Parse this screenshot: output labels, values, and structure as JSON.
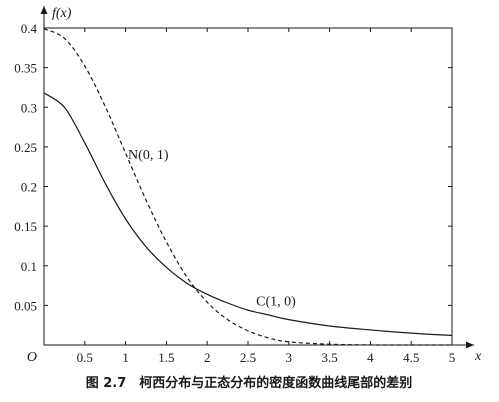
{
  "chart_data": {
    "type": "line",
    "title": "",
    "caption": "图 2.7　柯西分布与正态分布的密度函数曲线尾部的差别",
    "xlabel": "x",
    "ylabel": "f(x)",
    "origin_label": "O",
    "xlim": [
      0,
      5
    ],
    "ylim": [
      0,
      0.4
    ],
    "xticks": [
      0.5,
      1,
      1.5,
      2,
      2.5,
      3,
      3.5,
      4,
      4.5,
      5
    ],
    "xtick_labels": [
      "0.5",
      "1",
      "1.5",
      "2",
      "2.5",
      "3",
      "3.5",
      "4",
      "4.5",
      "5"
    ],
    "yticks": [
      0.05,
      0.1,
      0.15,
      0.2,
      0.25,
      0.3,
      0.35,
      0.4
    ],
    "ytick_labels": [
      "0.05",
      "0.1",
      "0.15",
      "0.2",
      "0.25",
      "0.3",
      "0.35",
      "0.4"
    ],
    "grid": false,
    "series": [
      {
        "name": "N(0, 1)",
        "style": "dashed",
        "color": "#1a1a1a",
        "x": [
          0,
          0.25,
          0.5,
          0.75,
          1,
          1.25,
          1.5,
          1.75,
          2,
          2.25,
          2.5,
          2.75,
          3,
          3.5,
          4,
          4.5,
          5
        ],
        "y": [
          0.399,
          0.387,
          0.352,
          0.301,
          0.242,
          0.183,
          0.13,
          0.086,
          0.054,
          0.032,
          0.018,
          0.009,
          0.004,
          0.001,
          0.0001,
          0.0,
          0.0
        ]
      },
      {
        "name": "C(1, 0)",
        "style": "solid",
        "color": "#1a1a1a",
        "x": [
          0,
          0.25,
          0.5,
          0.75,
          1,
          1.25,
          1.5,
          1.75,
          2,
          2.25,
          2.5,
          2.75,
          3,
          3.5,
          4,
          4.5,
          5
        ],
        "y": [
          0.318,
          0.3,
          0.255,
          0.204,
          0.159,
          0.124,
          0.098,
          0.078,
          0.064,
          0.053,
          0.044,
          0.038,
          0.032,
          0.024,
          0.019,
          0.015,
          0.012
        ]
      }
    ],
    "annotations": [
      {
        "text": "N(0, 1)",
        "series": "N(0, 1)"
      },
      {
        "text": "C(1, 0)",
        "series": "C(1, 0)"
      }
    ]
  }
}
